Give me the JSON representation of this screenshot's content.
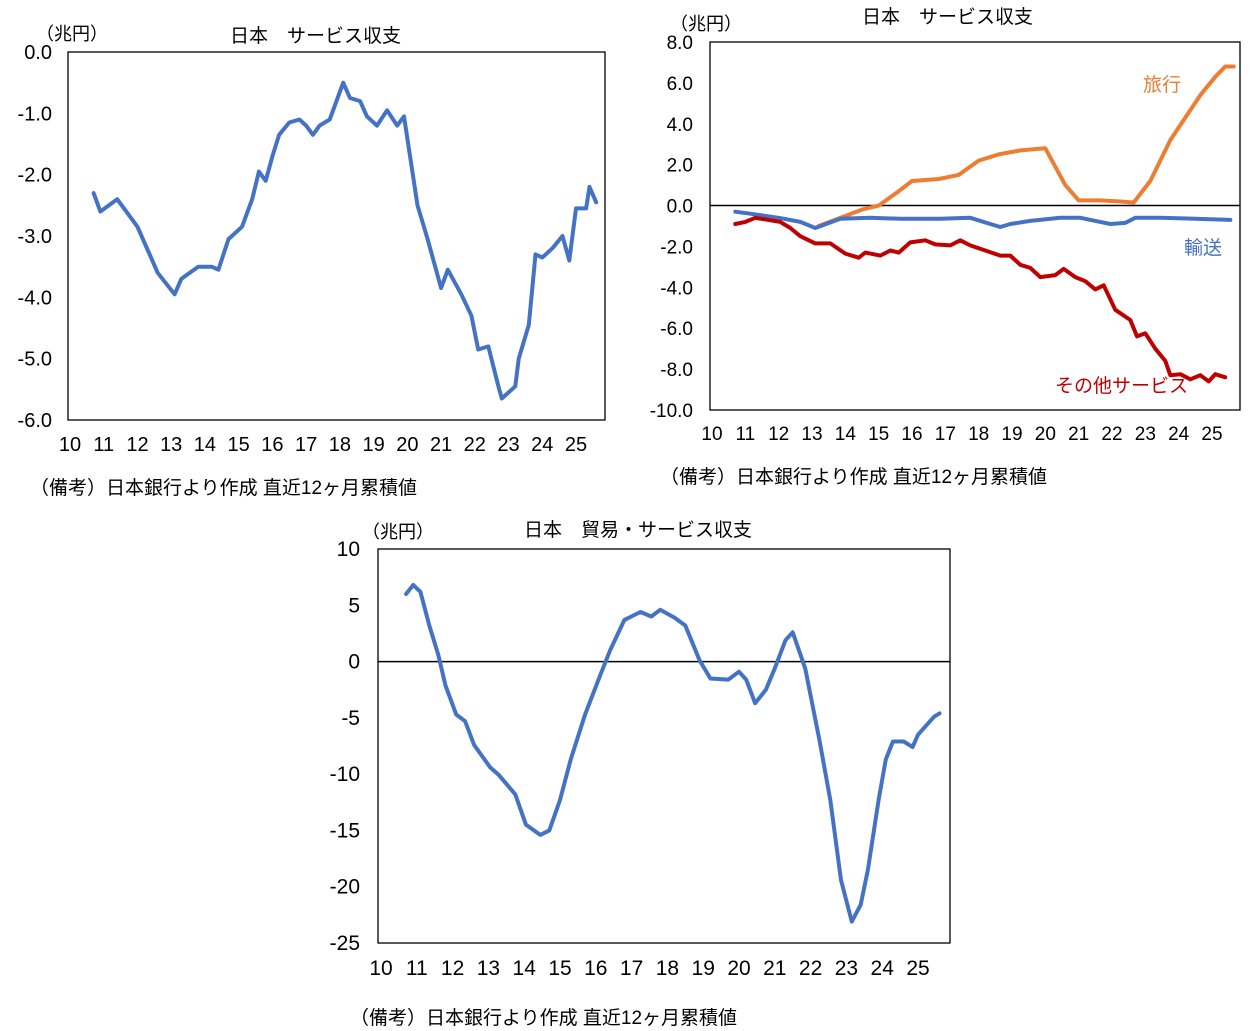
{
  "chart_data": [
    {
      "type": "line",
      "title": "日本　サービス収支",
      "ylabel": "（兆円）",
      "note": "（備考）日本銀行より作成 直近12ヶ月累積値",
      "ylim": [
        -6,
        0
      ],
      "xlim": [
        10,
        25.9
      ],
      "yticks": [
        0,
        -1,
        -2,
        -3,
        -4,
        -5,
        -6
      ],
      "ytick_labels": [
        "0.0",
        "-1.0",
        "-2.0",
        "-3.0",
        "-4.0",
        "-5.0",
        "-6.0"
      ],
      "xticks": [
        10,
        11,
        12,
        13,
        14,
        15,
        16,
        17,
        18,
        19,
        20,
        21,
        22,
        23,
        24,
        25
      ],
      "xtick_labels": [
        "10",
        "11",
        "12",
        "13",
        "14",
        "15",
        "16",
        "17",
        "18",
        "19",
        "20",
        "21",
        "22",
        "23",
        "24",
        "25"
      ],
      "zero_line": false,
      "series": [
        {
          "name": "サービス収支",
          "color": "#4472C4",
          "show_label": false,
          "x": [
            10.7,
            10.9,
            11.4,
            12.0,
            12.6,
            13.1,
            13.3,
            13.8,
            14.2,
            14.4,
            14.7,
            15.1,
            15.4,
            15.6,
            15.8,
            16.0,
            16.2,
            16.5,
            16.8,
            17.0,
            17.2,
            17.4,
            17.7,
            17.9,
            18.1,
            18.3,
            18.6,
            18.8,
            19.1,
            19.4,
            19.7,
            19.9,
            20.3,
            20.6,
            21.0,
            21.2,
            21.6,
            21.9,
            22.1,
            22.4,
            22.7,
            22.8,
            23.2,
            23.3,
            23.6,
            23.8,
            24.0,
            24.3,
            24.6,
            24.8,
            25.0,
            25.3,
            25.4,
            25.6
          ],
          "y": [
            -2.3,
            -2.6,
            -2.4,
            -2.85,
            -3.6,
            -3.95,
            -3.7,
            -3.5,
            -3.5,
            -3.55,
            -3.05,
            -2.85,
            -2.4,
            -1.95,
            -2.1,
            -1.7,
            -1.35,
            -1.15,
            -1.1,
            -1.2,
            -1.35,
            -1.2,
            -1.1,
            -0.8,
            -0.5,
            -0.75,
            -0.8,
            -1.05,
            -1.2,
            -0.95,
            -1.2,
            -1.05,
            -2.5,
            -3.05,
            -3.85,
            -3.55,
            -3.95,
            -4.3,
            -4.85,
            -4.8,
            -5.45,
            -5.65,
            -5.45,
            -5.0,
            -4.45,
            -3.3,
            -3.35,
            -3.2,
            -3.0,
            -3.4,
            -2.55,
            -2.55,
            -2.2,
            -2.45
          ]
        }
      ]
    },
    {
      "type": "line",
      "title": "日本　サービス収支",
      "ylabel": "（兆円）",
      "note": "（備考）日本銀行より作成 直近12ヶ月累積値",
      "ylim": [
        -10,
        8
      ],
      "xlim": [
        10,
        25.85
      ],
      "yticks": [
        8,
        6,
        4,
        2,
        0,
        -2,
        -4,
        -6,
        -8,
        -10
      ],
      "ytick_labels": [
        "8.0",
        "6.0",
        "4.0",
        "2.0",
        "0.0",
        "-2.0",
        "-4.0",
        "-6.0",
        "-8.0",
        "-10.0"
      ],
      "xticks": [
        10,
        11,
        12,
        13,
        14,
        15,
        16,
        17,
        18,
        19,
        20,
        21,
        22,
        23,
        24,
        25
      ],
      "xtick_labels": [
        "10",
        "11",
        "12",
        "13",
        "14",
        "15",
        "16",
        "17",
        "18",
        "19",
        "20",
        "21",
        "22",
        "23",
        "24",
        "25"
      ],
      "zero_line": true,
      "series": [
        {
          "name": "旅行",
          "color": "#ED7D31",
          "show_label": true,
          "x": [
            13.2,
            14.5,
            15.0,
            15.6,
            16.0,
            16.8,
            17.4,
            18.0,
            18.6,
            19.25,
            20.0,
            20.6,
            21.0,
            21.65,
            22.25,
            22.65,
            23.15,
            23.75,
            24.2,
            24.65,
            25.1,
            25.4,
            25.65
          ],
          "y": [
            -1.0,
            -0.2,
            0,
            0.7,
            1.2,
            1.3,
            1.5,
            2.2,
            2.5,
            2.7,
            2.8,
            1.0,
            0.25,
            0.25,
            0.2,
            0.15,
            1.2,
            3.2,
            4.3,
            5.4,
            6.3,
            6.8,
            6.8
          ]
        },
        {
          "name": "輸送",
          "color": "#4472C4",
          "show_label": true,
          "x": [
            10.7,
            11.15,
            12.0,
            12.65,
            13.1,
            13.85,
            14.75,
            15.65,
            16.85,
            17.75,
            18.35,
            18.65,
            18.95,
            19.55,
            20.45,
            21.05,
            21.65,
            21.95,
            22.4,
            22.7,
            23.45,
            24.5,
            25.55
          ],
          "y": [
            -0.3,
            -0.4,
            -0.6,
            -0.8,
            -1.1,
            -0.65,
            -0.6,
            -0.65,
            -0.65,
            -0.6,
            -0.9,
            -1.05,
            -0.9,
            -0.75,
            -0.6,
            -0.6,
            -0.8,
            -0.9,
            -0.85,
            -0.6,
            -0.6,
            -0.65,
            -0.7
          ]
        },
        {
          "name": "その他サービス",
          "color": "#C00000",
          "show_label": true,
          "x": [
            10.7,
            11.0,
            11.3,
            12.05,
            12.35,
            12.65,
            13.1,
            13.55,
            14.0,
            14.4,
            14.6,
            15.05,
            15.35,
            15.6,
            15.95,
            16.4,
            16.7,
            17.15,
            17.45,
            17.75,
            18.2,
            18.65,
            18.95,
            19.25,
            19.55,
            19.85,
            20.3,
            20.55,
            20.9,
            21.2,
            21.5,
            21.75,
            22.1,
            22.55,
            22.75,
            23.0,
            23.3,
            23.6,
            23.75,
            24.05,
            24.35,
            24.65,
            24.9,
            25.1,
            25.4
          ],
          "y": [
            -0.9,
            -0.8,
            -0.6,
            -0.8,
            -1.1,
            -1.5,
            -1.85,
            -1.85,
            -2.35,
            -2.55,
            -2.3,
            -2.45,
            -2.2,
            -2.3,
            -1.8,
            -1.7,
            -1.9,
            -1.95,
            -1.7,
            -1.95,
            -2.2,
            -2.45,
            -2.45,
            -2.9,
            -3.05,
            -3.5,
            -3.4,
            -3.1,
            -3.5,
            -3.7,
            -4.1,
            -3.9,
            -5.1,
            -5.6,
            -6.4,
            -6.25,
            -7.0,
            -7.6,
            -8.3,
            -8.25,
            -8.5,
            -8.3,
            -8.6,
            -8.25,
            -8.4
          ]
        }
      ]
    },
    {
      "type": "line",
      "title": "日本　貿易・サービス収支",
      "ylabel": "（兆円）",
      "note": "（備考）日本銀行より作成 直近12ヶ月累積値",
      "ylim": [
        -25,
        10
      ],
      "xlim": [
        10,
        25.9
      ],
      "yticks": [
        10,
        5,
        0,
        -5,
        -10,
        -15,
        -20,
        -25
      ],
      "ytick_labels": [
        "10",
        "5",
        "0",
        "-5",
        "-10",
        "-15",
        "-20",
        "-25"
      ],
      "xticks": [
        10,
        11,
        12,
        13,
        14,
        15,
        16,
        17,
        18,
        19,
        20,
        21,
        22,
        23,
        24,
        25
      ],
      "xtick_labels": [
        "10",
        "11",
        "12",
        "13",
        "14",
        "15",
        "16",
        "17",
        "18",
        "19",
        "20",
        "21",
        "22",
        "23",
        "24",
        "25"
      ],
      "zero_line": true,
      "series": [
        {
          "name": "貿易・サービス収支",
          "color": "#4472C4",
          "show_label": false,
          "x": [
            10.7,
            10.9,
            11.1,
            11.35,
            11.6,
            11.8,
            12.1,
            12.35,
            12.6,
            13.05,
            13.3,
            13.75,
            14.05,
            14.45,
            14.7,
            15.0,
            15.3,
            15.7,
            16.1,
            16.4,
            16.8,
            17.25,
            17.55,
            17.8,
            18.2,
            18.5,
            18.9,
            19.2,
            19.7,
            20.0,
            20.2,
            20.45,
            20.75,
            21.0,
            21.3,
            21.5,
            21.85,
            22.25,
            22.55,
            22.85,
            23.15,
            23.4,
            23.6,
            23.9,
            24.1,
            24.3,
            24.6,
            24.85,
            25.0,
            25.45,
            25.6
          ],
          "y": [
            6.0,
            6.8,
            6.2,
            3.2,
            0.6,
            -2.1,
            -4.7,
            -5.3,
            -7.4,
            -9.4,
            -10.1,
            -11.8,
            -14.5,
            -15.4,
            -15.0,
            -12.3,
            -8.7,
            -4.7,
            -1.4,
            1.0,
            3.7,
            4.4,
            4.0,
            4.6,
            3.9,
            3.2,
            0.1,
            -1.5,
            -1.6,
            -0.9,
            -1.6,
            -3.7,
            -2.5,
            -0.6,
            1.9,
            2.6,
            -0.6,
            -7.0,
            -12.3,
            -19.4,
            -23.1,
            -21.6,
            -18.5,
            -12.3,
            -8.7,
            -7.1,
            -7.1,
            -7.6,
            -6.5,
            -4.9,
            -4.6
          ]
        }
      ]
    }
  ]
}
